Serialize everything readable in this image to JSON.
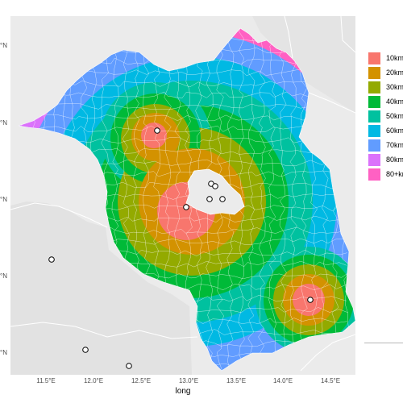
{
  "map": {
    "xlabel": "long",
    "x_ticks": [
      "11.5°E",
      "12.0°E",
      "12.5°E",
      "13.0°E",
      "13.5°E",
      "14.0°E",
      "14.5°E"
    ],
    "y_ticks": [
      "°N",
      "°N",
      "°N",
      "°N",
      "°N"
    ],
    "panel_background": "#ebebeb",
    "outside_region_color": "#e0e0e0",
    "border_color": "#ffffff"
  },
  "legend": {
    "items": [
      {
        "label": "10km",
        "color": "#f8766d"
      },
      {
        "label": "20km",
        "color": "#d39200"
      },
      {
        "label": "30km",
        "color": "#93aa00"
      },
      {
        "label": "40km",
        "color": "#00ba38"
      },
      {
        "label": "50km",
        "color": "#00c19f"
      },
      {
        "label": "60km",
        "color": "#00b9e3"
      },
      {
        "label": "70km",
        "color": "#619cff"
      },
      {
        "label": "80km",
        "color": "#db72fb"
      },
      {
        "label": "80+km",
        "color": "#ff61c3"
      }
    ]
  },
  "points": [
    {
      "name": "center-point"
    },
    {
      "name": "center-point"
    },
    {
      "name": "center-point"
    },
    {
      "name": "center-point"
    },
    {
      "name": "center-point"
    },
    {
      "name": "center-point"
    },
    {
      "name": "center-point"
    },
    {
      "name": "center-point"
    },
    {
      "name": "center-point"
    },
    {
      "name": "center-point"
    }
  ]
}
